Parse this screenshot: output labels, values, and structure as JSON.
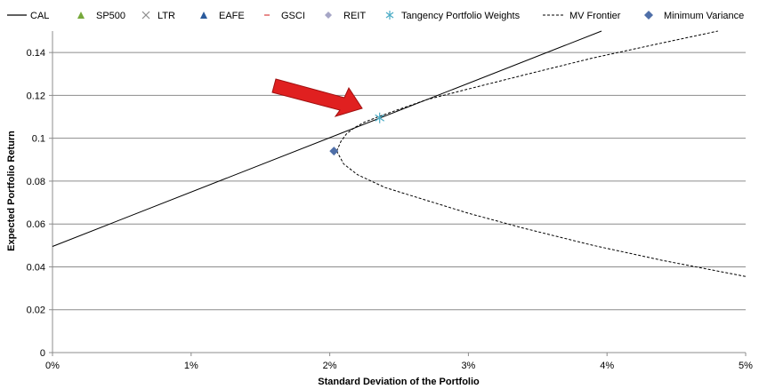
{
  "chart_data": {
    "type": "scatter",
    "title": "",
    "xlabel": "Standard Deviation of the Portfolio",
    "ylabel": "Expected Portfolio Return",
    "xlim": [
      0,
      0.05
    ],
    "ylim": [
      0,
      0.15
    ],
    "x_ticks": [
      0,
      0.01,
      0.02,
      0.03,
      0.04,
      0.05
    ],
    "x_tick_labels": [
      "0%",
      "1%",
      "2%",
      "3%",
      "4%",
      "5%"
    ],
    "y_ticks": [
      0,
      0.02,
      0.04,
      0.06,
      0.08,
      0.1,
      0.12,
      0.14
    ],
    "y_tick_labels": [
      "0",
      "0.02",
      "0.04",
      "0.06",
      "0.08",
      "0.1",
      "0.12",
      "0.14"
    ],
    "grid": "horizontal",
    "legend_position": "top",
    "legend": [
      {
        "name": "CAL",
        "marker": "line-solid",
        "color": "#000000"
      },
      {
        "name": "SP500",
        "marker": "triangle",
        "color": "#76a83a"
      },
      {
        "name": "LTR",
        "marker": "x",
        "color": "#8c8c8c"
      },
      {
        "name": "EAFE",
        "marker": "triangle",
        "color": "#2a5a9c"
      },
      {
        "name": "GSCI",
        "marker": "dash",
        "color": "#e06666"
      },
      {
        "name": "REIT",
        "marker": "diamond",
        "color": "#a6a6c6"
      },
      {
        "name": "Tangency Portfolio Weights",
        "marker": "asterisk",
        "color": "#4bacc6"
      },
      {
        "name": "MV Frontier",
        "marker": "line-dashed",
        "color": "#000000"
      },
      {
        "name": "Minimum Variance",
        "marker": "diamond",
        "color": "#4f6fa8"
      }
    ],
    "series": [
      {
        "name": "CAL",
        "kind": "line-solid",
        "x": [
          0,
          0.0396
        ],
        "y": [
          0.0495,
          0.15
        ]
      },
      {
        "name": "MV Frontier",
        "kind": "line-dashed",
        "x": [
          0.0205,
          0.0208,
          0.0212,
          0.0218,
          0.0225,
          0.0235,
          0.025,
          0.027,
          0.03,
          0.034,
          0.039,
          0.044,
          0.048
        ],
        "y": [
          0.094,
          0.0985,
          0.102,
          0.105,
          0.1075,
          0.11,
          0.1135,
          0.118,
          0.123,
          0.1295,
          0.1375,
          0.1445,
          0.15
        ]
      },
      {
        "name": "MV Frontier",
        "kind": "line-dashed",
        "x": [
          0.0205,
          0.021,
          0.022,
          0.024,
          0.027,
          0.03,
          0.034,
          0.039,
          0.044,
          0.05
        ],
        "y": [
          0.094,
          0.088,
          0.083,
          0.077,
          0.071,
          0.065,
          0.058,
          0.05,
          0.043,
          0.0355
        ]
      },
      {
        "name": "Tangency Portfolio Weights",
        "kind": "asterisk",
        "x": [
          0.0236
        ],
        "y": [
          0.1095
        ]
      },
      {
        "name": "Minimum Variance",
        "kind": "diamond",
        "x": [
          0.0203
        ],
        "y": [
          0.094
        ]
      }
    ]
  },
  "annotation": {
    "arrow_color": "#e02020"
  }
}
